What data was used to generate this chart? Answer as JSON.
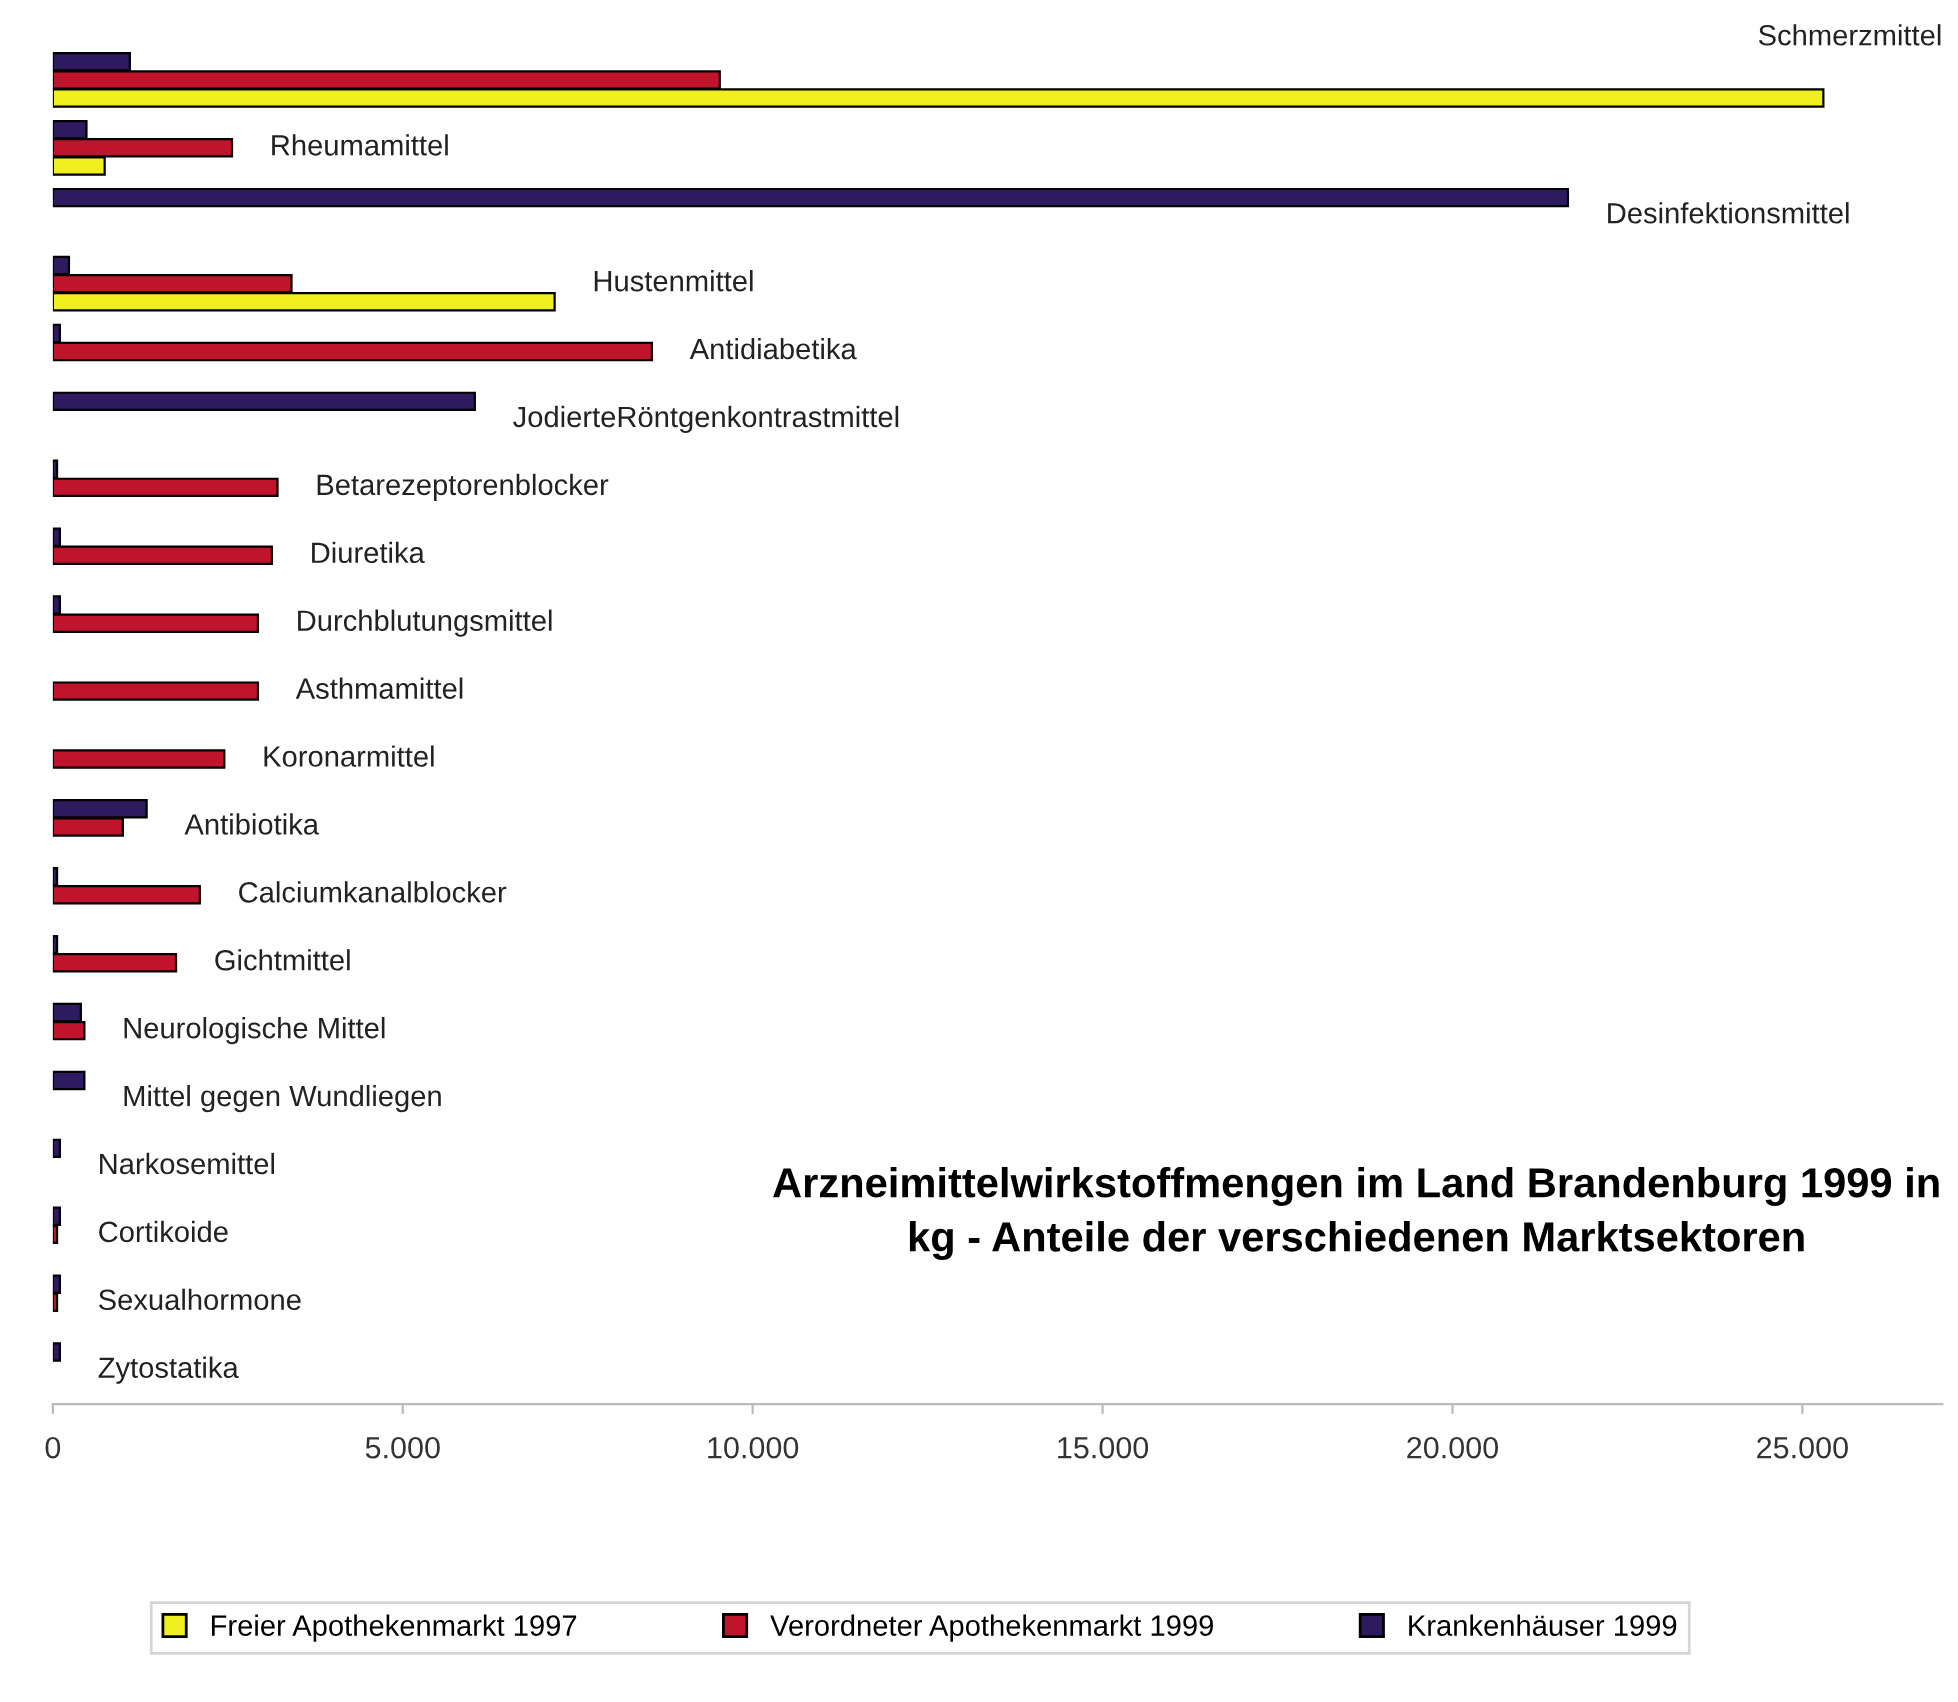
{
  "chart_data": {
    "type": "bar",
    "orientation": "horizontal",
    "title": "Arzneimittelwirkstoffmengen im Land Brandenburg 1999 in kg - Anteile der verschiedenen Marktsektoren",
    "categories": [
      "Schmerzmittel",
      "Rheumamittel",
      "Desinfektionsmittel",
      "Hustenmittel",
      "Antidiabetika",
      "JodierteRöntgenkontrastmittel",
      "Betarezeptorenblocker",
      "Diuretika",
      "Durchblutungsmittel",
      "Asthmamittel",
      "Koronarmittel",
      "Antibiotika",
      "Calciumkanalblocker",
      "Gichtmittel",
      "Neurologische Mittel",
      "Mittel gegen Wundliegen",
      "Narkosemittel",
      "Cortikoide",
      "Sexualhormone",
      "Zytostatika"
    ],
    "series": [
      {
        "name": "Krankenhäuser 1999",
        "color": "#2e1a5e",
        "values": [
          1100,
          480,
          21650,
          230,
          100,
          6030,
          60,
          100,
          100,
          null,
          null,
          1340,
          60,
          60,
          400,
          450,
          100,
          100,
          100,
          100
        ]
      },
      {
        "name": "Verordneter Apothekenmarkt 1999",
        "color": "#c0142c",
        "values": [
          9530,
          2560,
          null,
          3410,
          8560,
          null,
          3210,
          3130,
          2930,
          2930,
          2450,
          1000,
          2100,
          1760,
          450,
          null,
          null,
          60,
          60,
          null
        ]
      },
      {
        "name": "Freier Apothekenmarkt 1997",
        "color": "#f0f020",
        "values": [
          25300,
          740,
          null,
          7170,
          null,
          null,
          null,
          null,
          null,
          null,
          null,
          null,
          null,
          null,
          null,
          null,
          null,
          null,
          null,
          null
        ]
      }
    ],
    "xlim": [
      0,
      27000
    ],
    "xticks": [
      {
        "value": 0,
        "label": "0"
      },
      {
        "value": 5000,
        "label": "5.000"
      },
      {
        "value": 10000,
        "label": "10.000"
      },
      {
        "value": 15000,
        "label": "15.000"
      },
      {
        "value": 20000,
        "label": "20.000"
      },
      {
        "value": 25000,
        "label": "25.000"
      }
    ],
    "tick_labels": "x",
    "grid": false,
    "legend": "bottom"
  }
}
